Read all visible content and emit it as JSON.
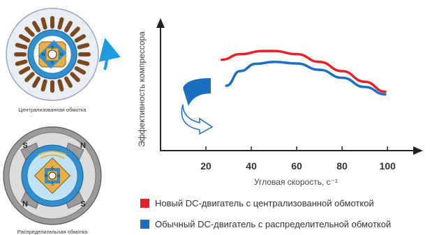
{
  "motors": {
    "top": {
      "caption": "Централизованная обмотка",
      "pole_labels": [
        "S",
        "N",
        "S",
        "N"
      ]
    },
    "bottom": {
      "caption": "Распределительная обмотка",
      "stator_labels": [
        "S",
        "N",
        "S",
        "N"
      ],
      "rotor_labels": [
        "S",
        "N",
        "S",
        "N"
      ]
    }
  },
  "chart_data": {
    "type": "line",
    "title": "",
    "xlabel": "Угловая скорость, c⁻¹",
    "ylabel": "Эффективность компрессора",
    "x_ticks": [
      20,
      40,
      60,
      80,
      100
    ],
    "xlim": [
      0,
      115
    ],
    "ylim": [
      0,
      1
    ],
    "grid": false,
    "legend_position": "bottom",
    "series": [
      {
        "name": "Новый DC-двигатель с централизованной обмоткой",
        "color": "#e8202a",
        "x": [
          27,
          35,
          45,
          50,
          60,
          70,
          80,
          90,
          99
        ],
        "y": [
          0.686,
          0.728,
          0.752,
          0.752,
          0.728,
          0.67,
          0.6,
          0.52,
          0.445
        ]
      },
      {
        "name": "Обычный DC-двигатель с распределительной обмоткой",
        "color": "#1a6fc0",
        "x": [
          29,
          35,
          42,
          50,
          60,
          70,
          80,
          90,
          99
        ],
        "y": [
          0.49,
          0.6,
          0.655,
          0.67,
          0.658,
          0.61,
          0.55,
          0.48,
          0.425
        ]
      }
    ]
  },
  "colors": {
    "rotation_arrow": "#1d9be0",
    "stator_light": "#e8eef4",
    "stator_blue": "#2f8fcf",
    "winding": "#7a4a1e",
    "rotor": "#e6b04a",
    "stator_gray": "#9a9a9a",
    "improvement_arrow": "#1a6fc0"
  }
}
